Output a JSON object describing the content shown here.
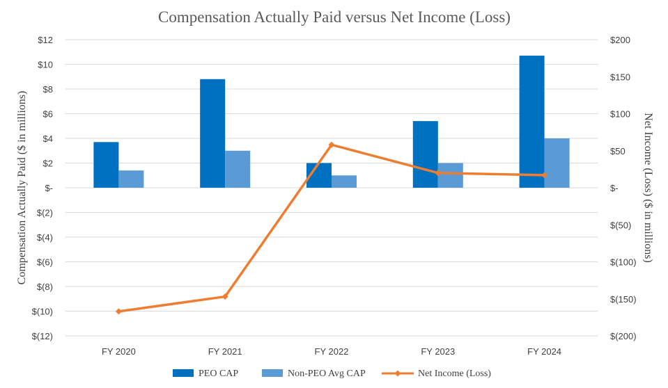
{
  "chart_data": {
    "type": "bar",
    "title": "Compensation Actually Paid versus Net Income (Loss)",
    "categories": [
      "FY 2020",
      "FY 2021",
      "FY 2022",
      "FY 2023",
      "FY 2024"
    ],
    "series": [
      {
        "name": "PEO CAP",
        "axis": "left",
        "kind": "bar",
        "color": "#0070c0",
        "values": [
          3.7,
          8.8,
          2.0,
          5.4,
          10.7
        ]
      },
      {
        "name": "Non-PEO Avg CAP",
        "axis": "left",
        "kind": "bar",
        "color": "#5b9bd5",
        "values": [
          1.4,
          3.0,
          1.0,
          2.0,
          4.0
        ]
      },
      {
        "name": "Net Income (Loss)",
        "axis": "right",
        "kind": "line",
        "color": "#ed7d31",
        "values": [
          -167,
          -147,
          58,
          20,
          17
        ]
      }
    ],
    "ylabel_left": "Compensation Actually Paid ($ in millions)",
    "ylabel_right": "Net Income (Loss) ($ in millions)",
    "ylim_left": [
      -12,
      12
    ],
    "ylim_right": [
      -200,
      200
    ],
    "yticks_left": [
      "$12",
      "$10",
      "$8",
      "$6",
      "$4",
      "$2",
      "$-",
      "$(2)",
      "$(4)",
      "$(6)",
      "$(8)",
      "$(10)",
      "$(12)"
    ],
    "yticks_right": [
      "$200",
      "$150",
      "$100",
      "$50",
      "$-",
      "$(50)",
      "$(100)",
      "$(150)",
      "$(200)"
    ],
    "grid": true,
    "legend": "bottom"
  }
}
